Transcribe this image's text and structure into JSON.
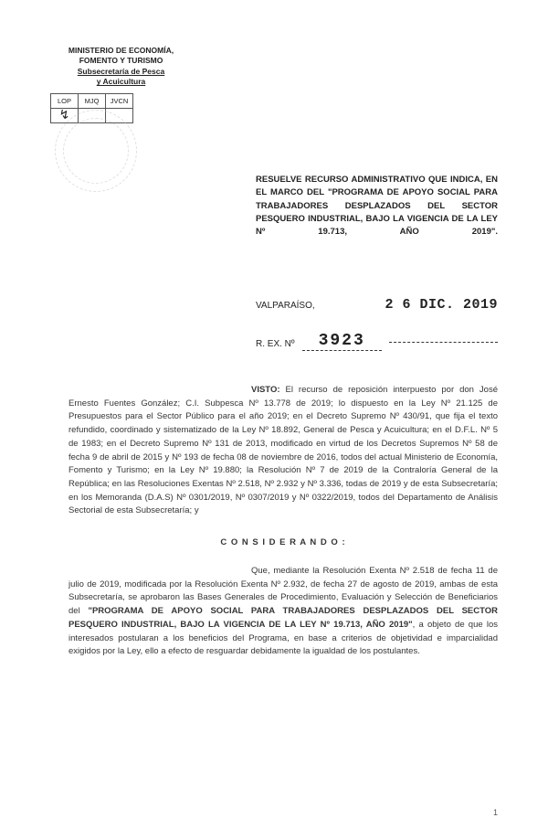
{
  "header": {
    "ministry_line1": "MINISTERIO DE ECONOMÍA,",
    "ministry_line2": "FOMENTO Y TURISMO",
    "ministry_line3": "Subsecretaría de Pesca",
    "ministry_line4": "y Acuicultura",
    "stamp_headers": [
      "LOP",
      "MJQ",
      "JVCN"
    ],
    "stamp_marks": [
      "↯",
      "",
      ""
    ]
  },
  "title": "RESUELVE RECURSO ADMINISTRATIVO QUE INDICA, EN EL MARCO DEL \"PROGRAMA DE APOYO SOCIAL PARA TRABAJADORES DESPLAZADOS DEL SECTOR PESQUERO INDUSTRIAL, BAJO LA VIGENCIA DE LA LEY Nº 19.713, AÑO 2019\".",
  "date_location": "VALPARAÍSO,",
  "date_value": "2 6 DIC. 2019",
  "rex_label": "R. EX. Nº",
  "rex_number": "3923",
  "visto": {
    "label": "VISTO:",
    "text": " El recurso de reposición interpuesto por don José Ernesto Fuentes González; C.I. Subpesca Nº 13.778 de 2019; lo dispuesto en la Ley Nº 21.125 de Presupuestos para el Sector Público para el año 2019; en el Decreto Supremo Nº 430/91, que fija el texto refundido, coordinado y sistematizado de la Ley Nº 18.892, General de Pesca y Acuicultura; en el D.F.L. Nº 5 de 1983; en el Decreto Supremo Nº 131 de 2013, modificado en virtud de los Decretos Supremos Nº 58 de fecha 9 de abril de 2015 y Nº 193 de fecha 08 de noviembre de 2016, todos del actual Ministerio de Economía, Fomento y Turismo; en la Ley Nº 19.880; la Resolución Nº 7 de 2019 de la Contraloría General de la República; en las Resoluciones Exentas Nº 2.518, Nº 2.932 y Nº 3.336, todas de 2019 y de esta Subsecretaría; en los Memoranda (D.A.S) Nº 0301/2019, Nº 0307/2019 y Nº 0322/2019, todos del Departamento de Análisis Sectorial de esta Subsecretaría; y"
  },
  "considerando": {
    "heading": "C O N S I D E R A N D O :",
    "para1_pre": "Que, mediante la Resolución Exenta Nº 2.518 de fecha 11 de julio de 2019, modificada por la Resolución Exenta Nº 2.932, de fecha 27 de agosto de 2019, ambas de esta Subsecretaría, se aprobaron las Bases Generales de Procedimiento, Evaluación y Selección de Beneficiarios del ",
    "para1_bold": "\"PROGRAMA DE APOYO SOCIAL PARA TRABAJADORES DESPLAZADOS DEL SECTOR PESQUERO INDUSTRIAL, BAJO LA VIGENCIA DE LA LEY Nº 19.713, AÑO 2019\"",
    "para1_post": ", a objeto de que los interesados postularan a los beneficios del Programa, en base a criterios de objetividad e imparcialidad exigidos por la Ley, ello a efecto de resguardar debidamente la igualdad de los postulantes."
  },
  "page_number": "1"
}
